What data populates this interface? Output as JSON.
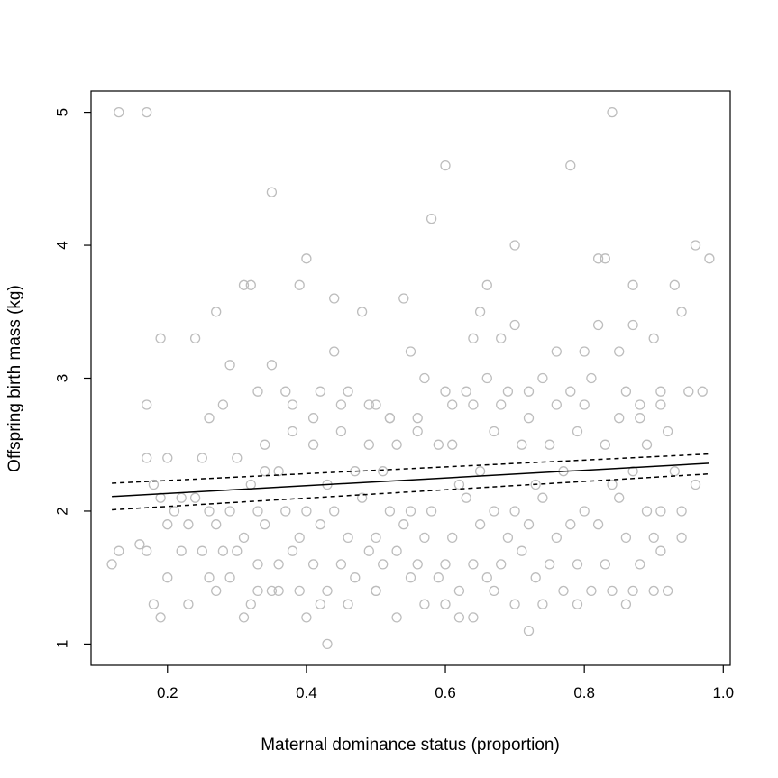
{
  "chart_data": {
    "type": "scatter",
    "title": "",
    "xlabel": "Maternal dominance status (proportion)",
    "ylabel": "Offspring birth mass (kg)",
    "xlim": [
      0.09,
      1.01
    ],
    "ylim": [
      0.84,
      5.16
    ],
    "xticks": [
      0.2,
      0.4,
      0.6,
      0.8,
      1.0
    ],
    "xtick_labels": [
      "0.2",
      "0.4",
      "0.6",
      "0.8",
      "1.0"
    ],
    "yticks": [
      1,
      2,
      3,
      4,
      5
    ],
    "ytick_labels": [
      "1",
      "2",
      "3",
      "4",
      "5"
    ],
    "grid": false,
    "point_style": "open circle",
    "point_color": "#bdbdbd",
    "line_color": "#000000",
    "x": [
      0.13,
      0.17,
      0.84,
      0.6,
      0.78,
      0.35,
      0.58,
      0.96,
      0.98,
      0.7,
      0.4,
      0.31,
      0.32,
      0.39,
      0.66,
      0.82,
      0.83,
      0.87,
      0.93,
      0.44,
      0.54,
      0.27,
      0.48,
      0.65,
      0.68,
      0.7,
      0.82,
      0.87,
      0.94,
      0.19,
      0.24,
      0.29,
      0.35,
      0.44,
      0.55,
      0.64,
      0.76,
      0.8,
      0.85,
      0.9,
      0.17,
      0.28,
      0.33,
      0.37,
      0.42,
      0.46,
      0.5,
      0.52,
      0.57,
      0.6,
      0.63,
      0.66,
      0.69,
      0.72,
      0.74,
      0.78,
      0.81,
      0.86,
      0.88,
      0.91,
      0.95,
      0.97,
      0.26,
      0.3,
      0.34,
      0.38,
      0.41,
      0.45,
      0.49,
      0.53,
      0.56,
      0.59,
      0.61,
      0.67,
      0.71,
      0.75,
      0.79,
      0.83,
      0.89,
      0.92,
      0.17,
      0.2,
      0.22,
      0.25,
      0.32,
      0.36,
      0.43,
      0.47,
      0.51,
      0.62,
      0.65,
      0.73,
      0.77,
      0.84,
      0.87,
      0.93,
      0.96,
      0.18,
      0.19,
      0.21,
      0.24,
      0.26,
      0.29,
      0.33,
      0.37,
      0.4,
      0.44,
      0.48,
      0.52,
      0.55,
      0.58,
      0.63,
      0.67,
      0.7,
      0.74,
      0.8,
      0.85,
      0.89,
      0.91,
      0.94,
      0.2,
      0.23,
      0.27,
      0.31,
      0.34,
      0.39,
      0.42,
      0.46,
      0.5,
      0.54,
      0.57,
      0.61,
      0.65,
      0.69,
      0.72,
      0.76,
      0.78,
      0.82,
      0.86,
      0.9,
      0.94,
      0.12,
      0.13,
      0.16,
      0.17,
      0.2,
      0.22,
      0.25,
      0.28,
      0.3,
      0.33,
      0.36,
      0.38,
      0.41,
      0.45,
      0.49,
      0.51,
      0.53,
      0.56,
      0.6,
      0.64,
      0.68,
      0.71,
      0.75,
      0.79,
      0.83,
      0.88,
      0.91,
      0.18,
      0.23,
      0.26,
      0.29,
      0.32,
      0.35,
      0.39,
      0.43,
      0.47,
      0.5,
      0.55,
      0.59,
      0.62,
      0.66,
      0.73,
      0.77,
      0.81,
      0.84,
      0.87,
      0.9,
      0.31,
      0.4,
      0.43,
      0.53,
      0.62,
      0.64,
      0.72,
      0.19,
      0.27,
      0.33,
      0.36,
      0.42,
      0.46,
      0.5,
      0.57,
      0.6,
      0.67,
      0.7,
      0.74,
      0.79,
      0.86,
      0.92,
      0.34,
      0.38,
      0.41,
      0.45,
      0.49,
      0.52,
      0.56,
      0.61,
      0.64,
      0.68,
      0.72,
      0.76,
      0.8,
      0.85,
      0.88,
      0.91
    ],
    "y": [
      5.0,
      5.0,
      5.0,
      4.6,
      4.6,
      4.4,
      4.2,
      4.0,
      3.9,
      4.0,
      3.9,
      3.7,
      3.7,
      3.7,
      3.7,
      3.9,
      3.9,
      3.7,
      3.7,
      3.6,
      3.6,
      3.5,
      3.5,
      3.5,
      3.3,
      3.4,
      3.4,
      3.4,
      3.5,
      3.3,
      3.3,
      3.1,
      3.1,
      3.2,
      3.2,
      3.3,
      3.2,
      3.2,
      3.2,
      3.3,
      2.8,
      2.8,
      2.9,
      2.9,
      2.9,
      2.9,
      2.8,
      2.7,
      3.0,
      2.9,
      2.9,
      3.0,
      2.9,
      2.9,
      3.0,
      2.9,
      3.0,
      2.9,
      2.8,
      2.9,
      2.9,
      2.9,
      2.7,
      2.4,
      2.5,
      2.6,
      2.5,
      2.6,
      2.5,
      2.5,
      2.6,
      2.5,
      2.5,
      2.6,
      2.5,
      2.5,
      2.6,
      2.5,
      2.5,
      2.6,
      2.4,
      2.4,
      2.1,
      2.4,
      2.2,
      2.3,
      2.2,
      2.3,
      2.3,
      2.2,
      2.3,
      2.2,
      2.3,
      2.2,
      2.3,
      2.3,
      2.2,
      2.2,
      2.1,
      2.0,
      2.1,
      2.0,
      2.0,
      2.0,
      2.0,
      2.0,
      2.0,
      2.1,
      2.0,
      2.0,
      2.0,
      2.1,
      2.0,
      2.0,
      2.1,
      2.0,
      2.1,
      2.0,
      2.0,
      2.0,
      1.9,
      1.9,
      1.9,
      1.8,
      1.9,
      1.8,
      1.9,
      1.8,
      1.8,
      1.9,
      1.8,
      1.8,
      1.9,
      1.8,
      1.9,
      1.8,
      1.9,
      1.9,
      1.8,
      1.8,
      1.8,
      1.6,
      1.7,
      1.75,
      1.7,
      1.5,
      1.7,
      1.7,
      1.7,
      1.7,
      1.6,
      1.6,
      1.7,
      1.6,
      1.6,
      1.7,
      1.6,
      1.7,
      1.6,
      1.6,
      1.6,
      1.6,
      1.7,
      1.6,
      1.6,
      1.6,
      1.6,
      1.7,
      1.3,
      1.3,
      1.5,
      1.5,
      1.3,
      1.4,
      1.4,
      1.4,
      1.5,
      1.4,
      1.5,
      1.5,
      1.4,
      1.5,
      1.5,
      1.4,
      1.4,
      1.4,
      1.4,
      1.4,
      1.2,
      1.2,
      1.0,
      1.2,
      1.2,
      1.2,
      1.1,
      1.2,
      1.4,
      1.4,
      1.4,
      1.3,
      1.3,
      1.4,
      1.3,
      1.3,
      1.4,
      1.3,
      1.3,
      1.3,
      1.3,
      1.4,
      2.3,
      2.8,
      2.7,
      2.8,
      2.8,
      2.7,
      2.7,
      2.8,
      2.8,
      2.8,
      2.7,
      2.8,
      2.8,
      2.7,
      2.7,
      2.8
    ],
    "fit_line": {
      "x": [
        0.12,
        0.98
      ],
      "y": [
        2.11,
        2.36
      ]
    },
    "ci_upper": {
      "x": [
        0.12,
        0.98
      ],
      "y": [
        2.21,
        2.43
      ]
    },
    "ci_lower": {
      "x": [
        0.12,
        0.98
      ],
      "y": [
        2.01,
        2.28
      ]
    }
  }
}
